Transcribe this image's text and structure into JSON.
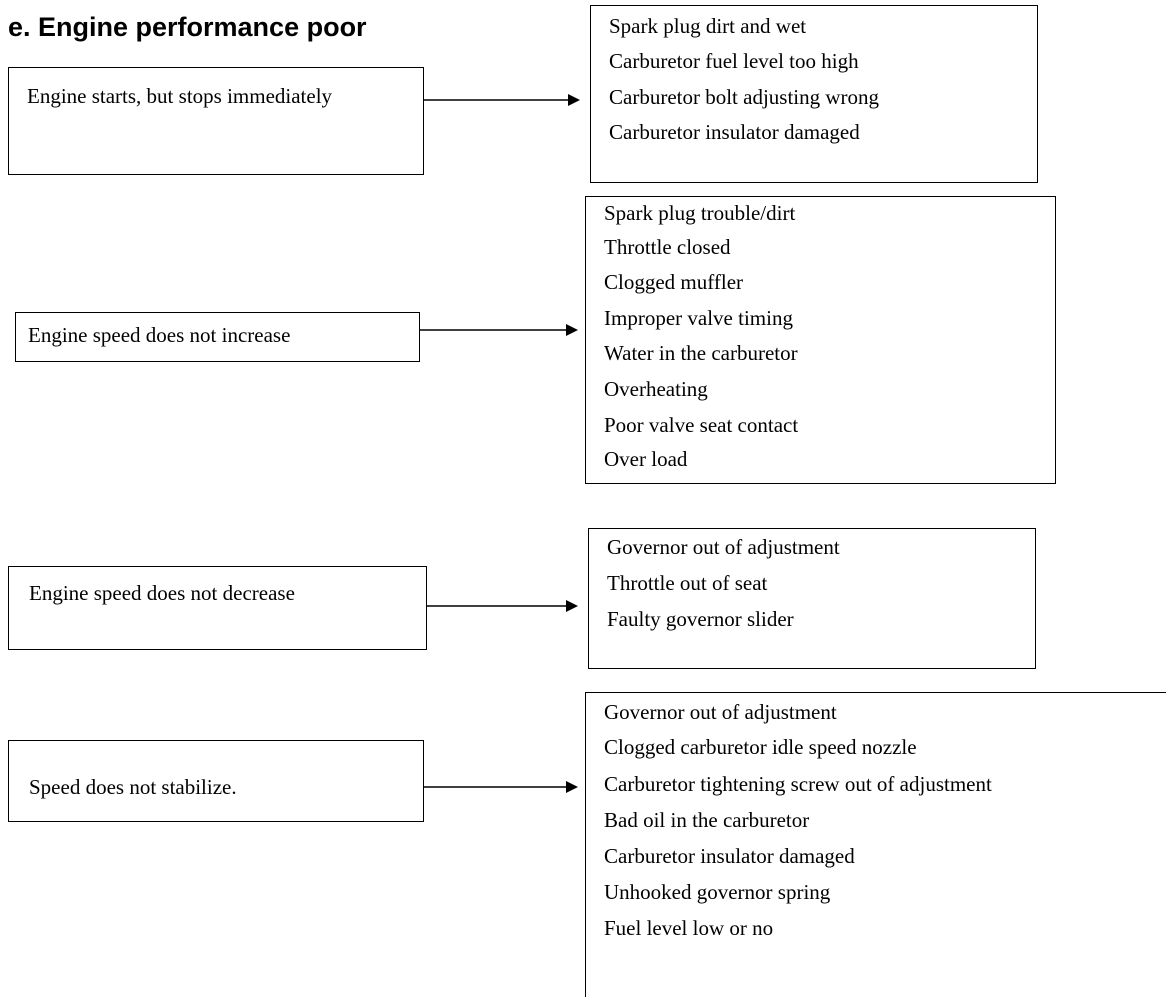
{
  "title": "e. Engine performance poor",
  "rows": [
    {
      "symptom": "Engine starts, but stops immediately",
      "causes": [
        "Spark plug dirt and wet",
        "Carburetor fuel level too high",
        "Carburetor bolt adjusting wrong",
        "Carburetor insulator damaged"
      ]
    },
    {
      "symptom": "Engine speed does not increase",
      "causes": [
        "Spark plug trouble/dirt",
        "Throttle closed",
        "Clogged muffler",
        "Improper valve timing",
        "Water in the carburetor",
        "Overheating",
        "Poor valve seat contact",
        "Over load"
      ]
    },
    {
      "symptom": "Engine speed does not decrease",
      "causes": [
        "Governor out of adjustment",
        "Throttle out of seat",
        "Faulty governor slider"
      ]
    },
    {
      "symptom": "Speed does not stabilize.",
      "causes": [
        "Governor out of adjustment",
        "Clogged carburetor idle speed nozzle",
        "Carburetor tightening screw out of adjustment",
        "Bad oil in the carburetor",
        "Carburetor insulator damaged",
        "Unhooked governor spring",
        "Fuel level low or no"
      ]
    }
  ]
}
